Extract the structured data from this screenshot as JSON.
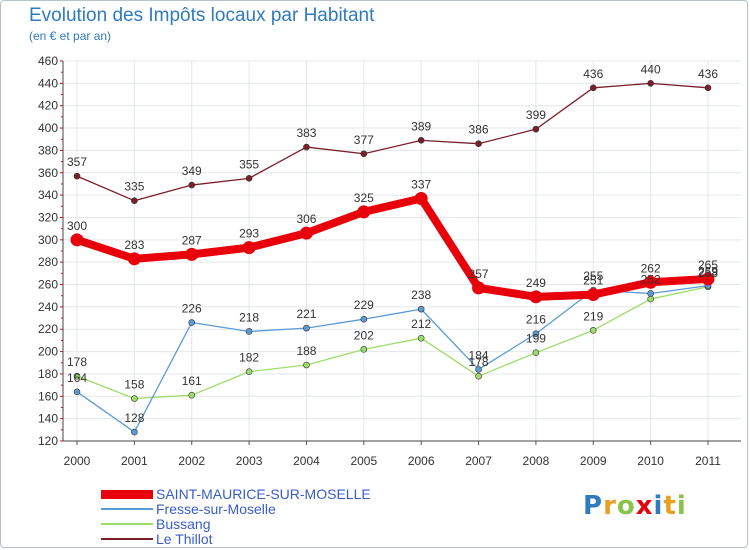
{
  "header": {
    "title": "Evolution des Impôts locaux par Habitant",
    "subtitle": "(en € et par an)"
  },
  "chart_data": {
    "type": "line",
    "x": [
      "2000",
      "2001",
      "2002",
      "2003",
      "2004",
      "2005",
      "2006",
      "2007",
      "2008",
      "2009",
      "2010",
      "2011"
    ],
    "ylim": [
      120,
      460
    ],
    "yticks": [
      120,
      140,
      160,
      180,
      200,
      220,
      240,
      260,
      280,
      300,
      320,
      340,
      360,
      380,
      400,
      420,
      440,
      460
    ],
    "grid": true,
    "series": [
      {
        "name": "Le Thillot",
        "color": "#7a1f2b",
        "values": [
          357,
          335,
          349,
          355,
          383,
          377,
          389,
          386,
          399,
          436,
          440,
          436
        ],
        "labels": [
          "357",
          "335",
          "349",
          "355",
          "383",
          "377",
          "389",
          "386",
          "399",
          "436",
          "440",
          "436"
        ]
      },
      {
        "name": "Bussang",
        "color": "#9ddc6a",
        "values": [
          178,
          158,
          161,
          182,
          188,
          202,
          212,
          178,
          199,
          219,
          247,
          258
        ],
        "labels": [
          "178",
          "158",
          "161",
          "182",
          "188",
          "202",
          "212",
          "178",
          "199",
          "219",
          "",
          "258"
        ]
      },
      {
        "name": "Fresse-sur-Moselle",
        "color": "#5b9bd5",
        "values": [
          164,
          128,
          226,
          218,
          221,
          229,
          238,
          184,
          216,
          255,
          252,
          259
        ],
        "labels": [
          "164",
          "128",
          "226",
          "218",
          "221",
          "229",
          "238",
          "184",
          "216",
          "255",
          "252",
          "259"
        ]
      },
      {
        "name": "SAINT-MAURICE-SUR-MOSELLE",
        "color": "#e8000b",
        "values": [
          300,
          283,
          287,
          293,
          306,
          325,
          337,
          257,
          249,
          251,
          262,
          265
        ],
        "labels": [
          "300",
          "283",
          "287",
          "293",
          "306",
          "325",
          "337",
          "257",
          "249",
          "251",
          "262",
          "265"
        ]
      }
    ]
  },
  "legend": [
    {
      "label": "SAINT-MAURICE-SUR-MOSELLE",
      "color": "#e8000b"
    },
    {
      "label": "Fresse-sur-Moselle",
      "color": "#5b9bd5"
    },
    {
      "label": "Bussang",
      "color": "#9ddc6a"
    },
    {
      "label": "Le Thillot",
      "color": "#7a1f2b"
    }
  ],
  "logo": {
    "letters": [
      "P",
      "r",
      "o",
      "x",
      "i",
      "t",
      "i"
    ],
    "colors": [
      "#2f7bbf",
      "#e8a020",
      "#8bc34a",
      "#e8000b",
      "#2f7bbf",
      "#e8a020",
      "#8bc34a"
    ]
  }
}
